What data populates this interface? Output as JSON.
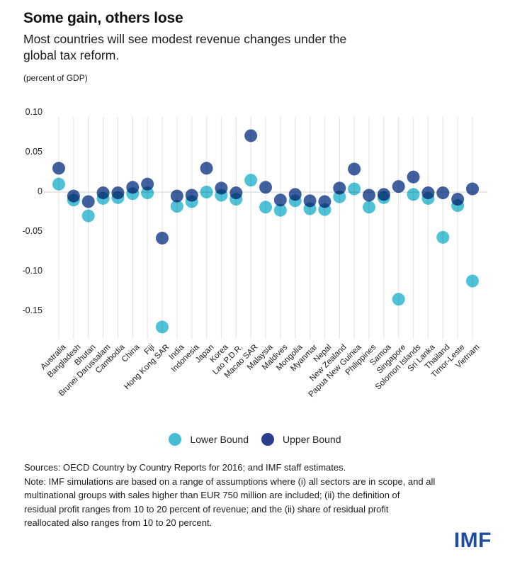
{
  "title": "Some gain, others lose",
  "subtitle_lines": [
    "Most countries will see modest revenue changes under the",
    "global tax reform."
  ],
  "unit_label": "(percent of GDP)",
  "y_axis": {
    "tick_labels": [
      "0.10",
      "0.05",
      "0",
      "-0.05",
      "-0.10",
      "-0.15"
    ],
    "tick_values": [
      0.1,
      0.05,
      0,
      -0.05,
      -0.1,
      -0.15
    ]
  },
  "legend": {
    "lower_label": "Lower Bound",
    "upper_label": "Upper Bound"
  },
  "colors": {
    "lower_dot": "#4fc2d7",
    "upper_dot": "#40609f",
    "legend_lower_dot": "#45bdd3",
    "legend_upper_dot": "#2b3e8e",
    "gridline": "#e7e7e7",
    "zero_line": "#d9d9d9",
    "imf_blue": "#1e4da0"
  },
  "footer": {
    "sources_line": "Sources: OECD Country by Country Reports for 2016; and IMF staff estimates.",
    "note_lines": [
      "Note: IMF simulations are based on a range of assumptions where (i) all sectors are in scope, and all",
      "multinational groups with sales higher than EUR 750 million are included; (ii) the definition of",
      "residual profit ranges from 10 to 20 percent of revenue; and the (ii) share of residual profit",
      "reallocated also ranges from 10 to 20 percent."
    ]
  },
  "logo_text": "IMF",
  "chart_data": {
    "type": "scatter",
    "title": "Some gain, others lose",
    "subtitle": "Most countries will see modest revenue changes under the global tax reform.",
    "ylabel": "percent of GDP",
    "ylim": [
      -0.19,
      0.095
    ],
    "grid": "vertical-per-category",
    "legend_position": "bottom",
    "categories": [
      "Australia",
      "Bangladesh",
      "Bhutan",
      "Brunei Darussalam",
      "Cambodia",
      "China",
      "Fiji",
      "Hong Kong SAR",
      "India",
      "Indonesia",
      "Japan",
      "Korea",
      "Lao P.D.R.",
      "Macao SAR",
      "Malaysia",
      "Maldives",
      "Mongolia",
      "Myanmar",
      "Nepal",
      "New Zealand",
      "Papua New Guinea",
      "Philippines",
      "Samoa",
      "Singapore",
      "Solomon Islands",
      "Sri Lanka",
      "Thailand",
      "Timor-Leste",
      "Vietnam"
    ],
    "series": [
      {
        "name": "Lower Bound",
        "color": "#4fc2d7",
        "values": [
          0.01,
          -0.01,
          -0.03,
          -0.008,
          -0.007,
          -0.002,
          -0.001,
          -0.17,
          -0.018,
          -0.012,
          0.0,
          -0.004,
          -0.009,
          0.015,
          -0.019,
          -0.023,
          -0.011,
          -0.021,
          -0.022,
          -0.006,
          0.004,
          -0.019,
          -0.007,
          -0.135,
          -0.003,
          -0.008,
          -0.057,
          -0.017,
          -0.112
        ]
      },
      {
        "name": "Upper Bound",
        "color": "#40609f",
        "values": [
          0.03,
          -0.005,
          -0.012,
          -0.001,
          -0.001,
          0.006,
          0.01,
          -0.058,
          -0.005,
          -0.004,
          0.03,
          0.005,
          -0.001,
          0.071,
          0.006,
          -0.01,
          -0.003,
          -0.011,
          -0.012,
          0.005,
          0.029,
          -0.004,
          -0.003,
          0.007,
          0.019,
          -0.001,
          -0.001,
          -0.009,
          0.004
        ]
      }
    ]
  }
}
